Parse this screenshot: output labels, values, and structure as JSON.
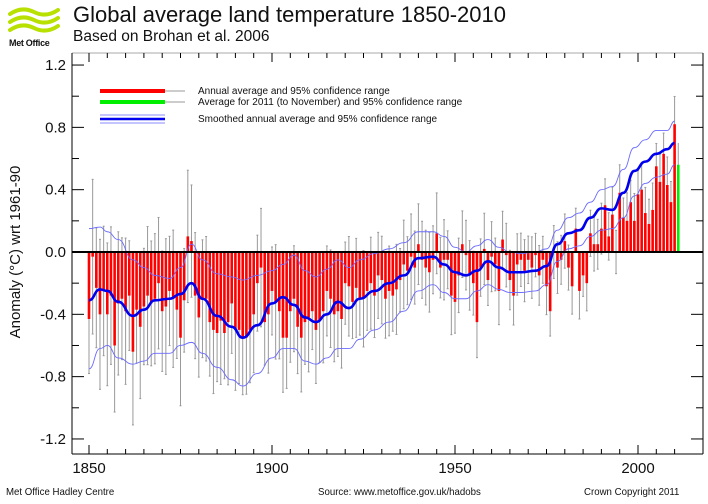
{
  "header": {
    "logo_text": "Met Office",
    "title": "Global average land temperature 1850-2010",
    "subtitle": "Based on Brohan et al. 2006"
  },
  "footer": {
    "left": "Met Office Hadley Centre",
    "center": "Source: www.metoffice.gov.uk/hadobs",
    "right": "Crown Copyright 2011"
  },
  "colors": {
    "annual_bar": "#ff0000",
    "current_year_bar": "#00ee00",
    "smoothed_line": "#0000ee",
    "smoothed_ci": "#6a6aff",
    "error_bar": "#999999",
    "zero_line": "#000000"
  },
  "chart_data": {
    "type": "bar",
    "title": "Global average land temperature 1850-2010",
    "subtitle": "Based on Brohan et al. 2006",
    "xlabel": "",
    "ylabel": "Anomaly (°C) wrt 1961-90",
    "xlim": [
      1846,
      2015
    ],
    "ylim": [
      -1.3,
      1.25
    ],
    "x_ticks": [
      1850,
      1900,
      1950,
      2000
    ],
    "y_ticks": [
      -1.2,
      -0.8,
      -0.4,
      0.0,
      0.4,
      0.8,
      1.2
    ],
    "y_tick_labels": [
      "-1.2",
      "-0.8",
      "-0.4",
      "0.0",
      "0.4",
      "0.8",
      "1.2"
    ],
    "legend": {
      "placement": "top-left",
      "entries": [
        {
          "label": "Annual average and 95% confidence range",
          "color": "#ff0000"
        },
        {
          "label": "Average for 2011 (to November) and 95% confidence range",
          "color": "#00ee00"
        },
        {
          "label": "Smoothed annual average and 95% confidence range",
          "color": "#0000ee"
        }
      ]
    },
    "annual": {
      "start_year": 1850,
      "values": [
        -0.43,
        -0.03,
        -0.23,
        -0.4,
        -0.25,
        -0.4,
        -0.28,
        -0.6,
        -0.33,
        -0.3,
        -0.38,
        -0.28,
        -0.64,
        -0.37,
        -0.48,
        -0.35,
        -0.28,
        -0.33,
        -0.3,
        -0.2,
        -0.38,
        -0.35,
        -0.25,
        -0.3,
        -0.37,
        -0.55,
        -0.31,
        0.1,
        0.07,
        -0.28,
        -0.42,
        -0.3,
        -0.3,
        -0.45,
        -0.5,
        -0.52,
        -0.44,
        -0.52,
        -0.45,
        -0.33,
        -0.5,
        -0.5,
        -0.55,
        -0.55,
        -0.5,
        -0.4,
        -0.2,
        -0.1,
        -0.45,
        -0.4,
        -0.25,
        -0.32,
        -0.38,
        -0.55,
        -0.55,
        -0.38,
        -0.3,
        -0.48,
        -0.55,
        -0.45,
        -0.42,
        -0.38,
        -0.5,
        -0.44,
        -0.38,
        -0.25,
        -0.3,
        -0.4,
        -0.38,
        -0.43,
        -0.2,
        -0.22,
        -0.32,
        -0.23,
        -0.3,
        -0.3,
        -0.25,
        -0.2,
        -0.28,
        -0.15,
        -0.18,
        -0.3,
        -0.25,
        -0.28,
        -0.24,
        -0.18,
        -0.08,
        -0.12,
        -0.03,
        -0.1,
        0.05,
        -0.05,
        -0.1,
        -0.13,
        -0.05,
        0.12,
        -0.1,
        -0.05,
        -0.05,
        -0.28,
        -0.32,
        -0.15,
        0.05,
        -0.02,
        -0.15,
        -0.2,
        -0.45,
        -0.1,
        0.02,
        -0.18,
        -0.03,
        -0.08,
        -0.25,
        0.08,
        -0.02,
        -0.18,
        -0.28,
        -0.08,
        -0.05,
        -0.12,
        -0.05,
        -0.1,
        -0.02,
        -0.15,
        -0.05,
        -0.22,
        -0.38,
        0.0,
        -0.1,
        -0.05,
        0.07,
        -0.1,
        -0.22,
        0.15,
        -0.25,
        -0.15,
        -0.2,
        0.12,
        0.05,
        0.05,
        0.15,
        0.3,
        0.1,
        0.24,
        0.0,
        0.38,
        0.22,
        0.2,
        0.32,
        0.2,
        0.37,
        0.4,
        0.25,
        0.18,
        0.27,
        0.55,
        0.45,
        0.63,
        0.43,
        0.32,
        0.82
      ],
      "ci_half_width_early": 0.5,
      "ci_half_width_late": 0.18
    },
    "current_year": {
      "year": 2011,
      "value": 0.56,
      "ci": [
        0.37,
        0.7
      ]
    },
    "smoothed": {
      "years": [
        1850,
        1853,
        1855,
        1858,
        1862,
        1865,
        1868,
        1872,
        1875,
        1878,
        1881,
        1885,
        1889,
        1892,
        1896,
        1900,
        1903,
        1906,
        1909,
        1912,
        1915,
        1918,
        1921,
        1924,
        1928,
        1932,
        1936,
        1940,
        1944,
        1947,
        1950,
        1953,
        1956,
        1959,
        1962,
        1965,
        1968,
        1972,
        1975,
        1978,
        1981,
        1984,
        1987,
        1990,
        1993,
        1996,
        1999,
        2002,
        2005,
        2008,
        2010
      ],
      "values": [
        -0.31,
        -0.24,
        -0.25,
        -0.32,
        -0.41,
        -0.37,
        -0.31,
        -0.3,
        -0.27,
        -0.2,
        -0.3,
        -0.41,
        -0.48,
        -0.55,
        -0.47,
        -0.33,
        -0.29,
        -0.34,
        -0.42,
        -0.45,
        -0.4,
        -0.32,
        -0.36,
        -0.3,
        -0.25,
        -0.2,
        -0.15,
        -0.04,
        -0.03,
        -0.08,
        -0.13,
        -0.15,
        -0.12,
        -0.06,
        -0.1,
        -0.13,
        -0.13,
        -0.12,
        -0.09,
        0.05,
        0.12,
        0.14,
        0.22,
        0.28,
        0.27,
        0.38,
        0.52,
        0.58,
        0.63,
        0.66,
        0.7
      ],
      "ci_upper": [
        0.15,
        0.16,
        0.13,
        0.08,
        -0.05,
        -0.1,
        -0.15,
        -0.17,
        -0.1,
        0.05,
        -0.05,
        -0.14,
        -0.16,
        -0.18,
        -0.15,
        -0.12,
        -0.08,
        -0.02,
        -0.12,
        -0.16,
        -0.11,
        -0.05,
        -0.1,
        -0.05,
        -0.01,
        0.02,
        0.06,
        0.13,
        0.13,
        0.1,
        0.03,
        0.0,
        0.04,
        0.08,
        0.03,
        -0.0,
        -0.01,
        0.0,
        0.02,
        0.14,
        0.22,
        0.25,
        0.32,
        0.4,
        0.42,
        0.53,
        0.67,
        0.72,
        0.78,
        0.78,
        0.84
      ],
      "ci_lower": [
        -0.75,
        -0.62,
        -0.6,
        -0.68,
        -0.72,
        -0.7,
        -0.65,
        -0.65,
        -0.6,
        -0.58,
        -0.65,
        -0.74,
        -0.82,
        -0.86,
        -0.78,
        -0.68,
        -0.62,
        -0.62,
        -0.7,
        -0.72,
        -0.68,
        -0.62,
        -0.62,
        -0.56,
        -0.5,
        -0.45,
        -0.38,
        -0.25,
        -0.21,
        -0.26,
        -0.3,
        -0.3,
        -0.25,
        -0.21,
        -0.24,
        -0.26,
        -0.26,
        -0.25,
        -0.21,
        -0.06,
        0.02,
        0.04,
        0.1,
        0.14,
        0.15,
        0.22,
        0.36,
        0.44,
        0.48,
        0.5,
        0.56
      ]
    }
  }
}
